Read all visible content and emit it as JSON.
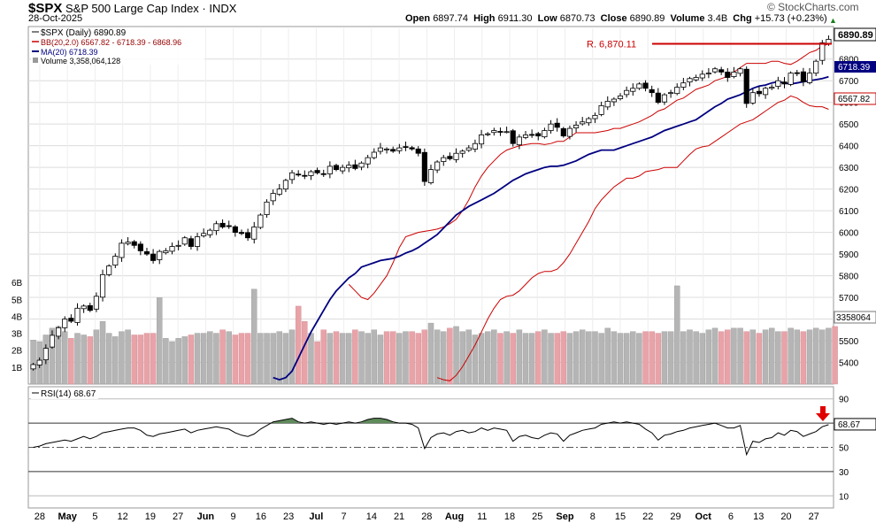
{
  "header": {
    "symbol": "$SPX",
    "name": "S&P 500 Large Cap Index",
    "exchange": "INDX",
    "date": "28-Oct-2025",
    "open_label": "Open",
    "open": "6897.74",
    "high_label": "High",
    "high": "6911.30",
    "low_label": "Low",
    "low": "6870.73",
    "close_label": "Close",
    "close": "6890.89",
    "volume_label": "Volume",
    "volume": "3.4B",
    "chg_label": "Chg",
    "chg": "+15.73 (+0.23%)",
    "brand": "© StockCharts.com"
  },
  "legend": {
    "price": "$SPX (Daily) 6890.89",
    "bb": "BB(20,2.0) 6567.82 - 6718.39 - 6868.96",
    "ma": "MA(20) 6718.39",
    "volume": "Volume 3,358,064,128",
    "rsi": "RSI(14) 68.67"
  },
  "annotations": {
    "resistance_label": "R. 6,870.11",
    "resistance_value": 6870.11,
    "last_price_tag": "6890.89",
    "ma_tag": "6718.39",
    "bb_lower_tag": "6567.82",
    "volume_tag": "3358064",
    "rsi_tag": "68.67"
  },
  "colors": {
    "up_candle": "#ffffff",
    "down_candle": "#000000",
    "bb": "#cc0000",
    "ma": "#000080",
    "resistance": "#cc0000",
    "vol_up": "#b5b5b5",
    "vol_down": "#e8a3a8",
    "rsi_line": "#000000",
    "rsi_fill": "#5f8a5a",
    "arrow": "#e00000"
  },
  "chart_data": [
    {
      "type": "candlestick",
      "title": "$SPX (Daily) 6890.89",
      "ylim": [
        5300,
        6950
      ],
      "yticks": [
        5400,
        5500,
        5600,
        5700,
        5800,
        5900,
        6000,
        6100,
        6200,
        6300,
        6400,
        6500,
        6600,
        6700,
        6800
      ],
      "x_labels": [
        "28",
        "May",
        "5",
        "12",
        "19",
        "27",
        "Jun",
        "9",
        "16",
        "23",
        "Jul",
        "7",
        "14",
        "21",
        "28",
        "Aug",
        "11",
        "18",
        "25",
        "Sep",
        "8",
        "15",
        "22",
        "29",
        "Oct",
        "6",
        "13",
        "20",
        "27"
      ],
      "grid": true,
      "series": [
        {
          "name": "Close",
          "values": [
            5390,
            5410,
            5465,
            5525,
            5560,
            5600,
            5590,
            5650,
            5660,
            5640,
            5705,
            5805,
            5845,
            5890,
            5950,
            5955,
            5940,
            5915,
            5900,
            5870,
            5912,
            5915,
            5935,
            5940,
            5975,
            5935,
            5980,
            5995,
            6010,
            6040,
            6025,
            6030,
            6000,
            5995,
            5975,
            6025,
            6080,
            6140,
            6180,
            6200,
            6240,
            6275,
            6265,
            6260,
            6280,
            6275,
            6270,
            6305,
            6290,
            6300,
            6310,
            6295,
            6320,
            6345,
            6370,
            6390,
            6385,
            6375,
            6390,
            6395,
            6385,
            6365,
            6235,
            6290,
            6325,
            6345,
            6340,
            6365,
            6375,
            6390,
            6410,
            6450,
            6455,
            6470,
            6465,
            6465,
            6410,
            6440,
            6450,
            6450,
            6445,
            6470,
            6500,
            6485,
            6445,
            6480,
            6495,
            6510,
            6525,
            6540,
            6585,
            6605,
            6615,
            6630,
            6655,
            6665,
            6685,
            6665,
            6645,
            6600,
            6635,
            6645,
            6670,
            6690,
            6710,
            6715,
            6730,
            6735,
            6755,
            6740,
            6715,
            6740,
            6755,
            6595,
            6645,
            6640,
            6665,
            6670,
            6700,
            6685,
            6735,
            6735,
            6695,
            6735,
            6790,
            6875,
            6891
          ]
        },
        {
          "name": "BB upper",
          "values": [
            5760,
            5730,
            5700,
            5690,
            5720,
            5760,
            5800,
            5860,
            5930,
            5980,
            5990,
            6000,
            6005,
            6010,
            6015,
            6025,
            6040,
            6060,
            6100,
            6150,
            6210,
            6260,
            6300,
            6330,
            6360,
            6380,
            6390,
            6400,
            6405,
            6410,
            6410,
            6405,
            6410,
            6420,
            6420,
            6440,
            6460,
            6460,
            6460,
            6460,
            6465,
            6470,
            6480,
            6480,
            6490,
            6500,
            6510,
            6525,
            6540,
            6560,
            6570,
            6590,
            6610,
            6620,
            6640,
            6660,
            6670,
            6680,
            6700,
            6710,
            6720,
            6740,
            6760,
            6780,
            6780,
            6780,
            6780,
            6790,
            6790,
            6780,
            6775,
            6790,
            6810,
            6830,
            6840,
            6860,
            6869
          ]
        },
        {
          "name": "MA(20)",
          "values": [
            5330,
            5320,
            5330,
            5360,
            5420,
            5480,
            5540,
            5590,
            5640,
            5690,
            5730,
            5760,
            5790,
            5810,
            5840,
            5850,
            5860,
            5870,
            5875,
            5880,
            5890,
            5905,
            5915,
            5930,
            5950,
            5970,
            5990,
            6020,
            6050,
            6080,
            6100,
            6120,
            6135,
            6150,
            6165,
            6180,
            6200,
            6220,
            6240,
            6255,
            6270,
            6280,
            6290,
            6300,
            6305,
            6305,
            6310,
            6320,
            6330,
            6345,
            6360,
            6370,
            6380,
            6380,
            6380,
            6390,
            6400,
            6410,
            6420,
            6430,
            6440,
            6455,
            6470,
            6480,
            6490,
            6500,
            6510,
            6520,
            6540,
            6560,
            6580,
            6595,
            6615,
            6625,
            6635,
            6650,
            6665,
            6675,
            6680,
            6690,
            6695,
            6690,
            6685,
            6690,
            6695,
            6700,
            6705,
            6710,
            6718
          ]
        },
        {
          "name": "BB lower",
          "values": [
            5330,
            5320,
            5315,
            5340,
            5380,
            5430,
            5480,
            5540,
            5600,
            5650,
            5690,
            5705,
            5710,
            5730,
            5760,
            5790,
            5810,
            5820,
            5820,
            5830,
            5860,
            5900,
            5950,
            6000,
            6050,
            6110,
            6150,
            6180,
            6210,
            6230,
            6250,
            6250,
            6260,
            6280,
            6285,
            6290,
            6300,
            6300,
            6300,
            6330,
            6360,
            6385,
            6395,
            6400,
            6420,
            6440,
            6460,
            6480,
            6500,
            6510,
            6520,
            6540,
            6560,
            6580,
            6600,
            6610,
            6630,
            6620,
            6600,
            6585,
            6580,
            6580,
            6568
          ]
        }
      ]
    },
    {
      "type": "bar",
      "title": "Volume 3,358,064,128",
      "ylim": [
        0,
        7000000000
      ],
      "yticks_labels": [
        "1B",
        "2B",
        "3B",
        "4B",
        "5B",
        "6B"
      ],
      "series": [
        {
          "name": "Volume",
          "values": [
            2.6,
            2.5,
            2.9,
            3.3,
            3.4,
            3.1,
            2.7,
            3.0,
            2.9,
            2.8,
            3.2,
            3.7,
            3.0,
            2.8,
            3.1,
            3.2,
            2.9,
            2.9,
            3.0,
            3.0,
            5.1,
            2.7,
            2.5,
            2.7,
            2.8,
            2.9,
            3.0,
            3.0,
            3.1,
            3.0,
            3.2,
            3.1,
            2.9,
            3.0,
            3.0,
            5.6,
            3.0,
            3.0,
            3.0,
            3.1,
            3.0,
            3.2,
            4.6,
            3.7,
            3.0,
            2.5,
            3.2,
            3.0,
            3.1,
            3.0,
            3.0,
            3.2,
            3.1,
            3.0,
            3.2,
            2.9,
            3.1,
            3.1,
            3.0,
            3.1,
            3.1,
            3.0,
            3.2,
            3.6,
            3.2,
            3.1,
            3.3,
            3.4,
            3.1,
            3.2,
            2.9,
            3.0,
            3.1,
            3.2,
            3.0,
            3.1,
            3.0,
            3.2,
            3.0,
            3.0,
            3.1,
            3.2,
            3.0,
            3.0,
            3.1,
            3.0,
            3.1,
            3.2,
            3.1,
            3.1,
            3.0,
            3.3,
            3.1,
            3.0,
            3.0,
            3.1,
            3.0,
            3.1,
            3.1,
            3.0,
            3.1,
            3.1,
            5.8,
            3.1,
            3.2,
            3.1,
            3.0,
            3.2,
            3.3,
            3.1,
            3.2,
            3.3,
            3.3,
            3.1,
            3.2,
            3.0,
            3.2,
            3.3,
            3.1,
            3.1,
            3.3,
            3.2,
            3.1,
            3.2,
            3.3,
            3.2,
            3.3,
            3.4
          ]
        }
      ]
    },
    {
      "type": "line",
      "title": "RSI(14) 68.67",
      "ylim": [
        0,
        100
      ],
      "yticks": [
        10,
        30,
        50,
        70,
        90
      ],
      "series": [
        {
          "name": "RSI(14)",
          "values": [
            50,
            51,
            53,
            54,
            55,
            56,
            55,
            57,
            59,
            57,
            59,
            62,
            63,
            64,
            65,
            66,
            66,
            64,
            60,
            59,
            61,
            62,
            63,
            64,
            65,
            62,
            64,
            65,
            66,
            67,
            66,
            65,
            62,
            60,
            59,
            61,
            65,
            68,
            71,
            72,
            73,
            74,
            71,
            70,
            71,
            70,
            69,
            70,
            69,
            70,
            71,
            70,
            71,
            73,
            74,
            74,
            73,
            71,
            70,
            70,
            69,
            66,
            49,
            58,
            61,
            62,
            60,
            63,
            64,
            62,
            63,
            66,
            64,
            66,
            65,
            64,
            55,
            59,
            60,
            58,
            57,
            60,
            62,
            61,
            55,
            60,
            62,
            64,
            65,
            66,
            69,
            70,
            71,
            70,
            71,
            70,
            69,
            65,
            62,
            56,
            60,
            61,
            63,
            64,
            66,
            67,
            68,
            69,
            70,
            68,
            66,
            66,
            68,
            44,
            55,
            54,
            57,
            58,
            62,
            60,
            64,
            63,
            59,
            61,
            63,
            67,
            68.67
          ]
        }
      ]
    }
  ]
}
